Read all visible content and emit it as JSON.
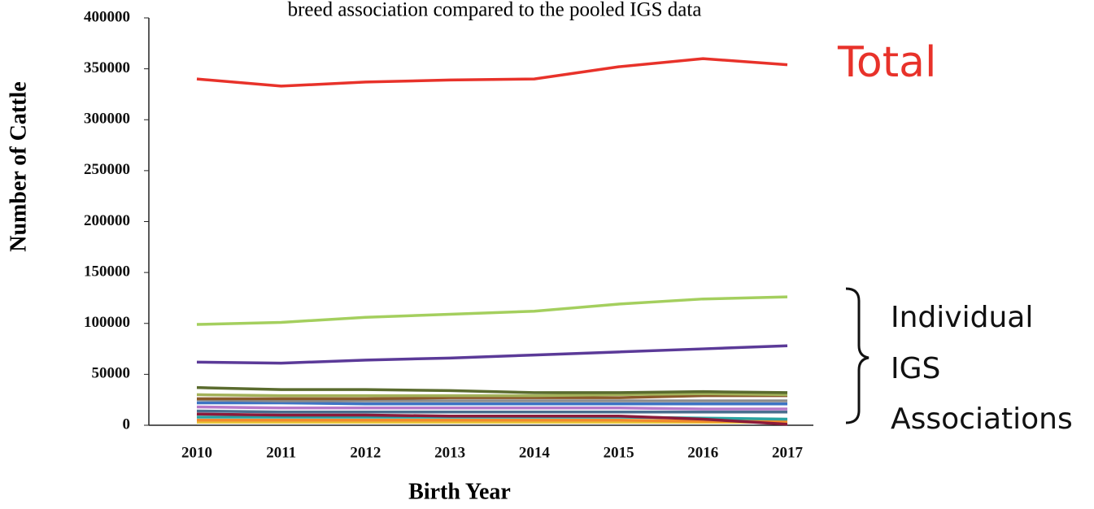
{
  "chart_data": {
    "type": "line",
    "title": "breed association compared to the pooled IGS data",
    "x_label": "Birth Year",
    "y_label": "Number of Cattle",
    "annotations": [
      "Total",
      "Individual",
      "IGS",
      "Associations"
    ],
    "categories": [
      "2010",
      "2011",
      "2012",
      "2013",
      "2014",
      "2015",
      "2016",
      "2017"
    ],
    "ylim": [
      0,
      400000
    ],
    "yticks": [
      0,
      50000,
      100000,
      150000,
      200000,
      250000,
      300000,
      350000,
      400000
    ],
    "grid": false,
    "series": [
      {
        "color": "#e8322a",
        "values": [
          340000,
          333000,
          337000,
          339000,
          340000,
          352000,
          360000,
          354000
        ]
      },
      {
        "color": "#a4cf5e",
        "values": [
          99000,
          101000,
          106000,
          109000,
          112000,
          119000,
          124000,
          126000
        ]
      },
      {
        "color": "#5b3a98",
        "values": [
          62000,
          61000,
          64000,
          66000,
          69000,
          72000,
          75000,
          78000
        ]
      },
      {
        "color": "#5a6b2e",
        "values": [
          37000,
          35000,
          35000,
          34000,
          32000,
          32000,
          33000,
          32000
        ]
      },
      {
        "color": "#a3b25a",
        "values": [
          30000,
          29000,
          29000,
          29000,
          29000,
          30000,
          31000,
          30000
        ]
      },
      {
        "color": "#8a5a2b",
        "values": [
          26000,
          26000,
          26000,
          27000,
          27000,
          27000,
          29000,
          29000
        ]
      },
      {
        "color": "#8c8c8c",
        "values": [
          25000,
          24000,
          24000,
          24000,
          24000,
          24000,
          24000,
          24000
        ]
      },
      {
        "color": "#3d74c4",
        "values": [
          22000,
          22000,
          21000,
          21000,
          21000,
          21000,
          21000,
          21000
        ]
      },
      {
        "color": "#b678c8",
        "values": [
          18000,
          17000,
          17000,
          17000,
          17000,
          17000,
          16000,
          16000
        ]
      },
      {
        "color": "#4a6f8f",
        "values": [
          14000,
          13000,
          13000,
          13000,
          13000,
          13000,
          13000,
          13000
        ]
      },
      {
        "color": "#8b1a3a",
        "values": [
          11000,
          10000,
          10000,
          9000,
          9000,
          9000,
          6000,
          1000
        ]
      },
      {
        "color": "#2aa3a0",
        "values": [
          8000,
          8000,
          8000,
          8000,
          8000,
          8000,
          7000,
          6000
        ]
      },
      {
        "color": "#f08a2c",
        "values": [
          5000,
          5000,
          5000,
          5000,
          5000,
          5000,
          4000,
          4000
        ]
      },
      {
        "color": "#e8c43a",
        "values": [
          3000,
          3000,
          3000,
          3000,
          3000,
          3000,
          3000,
          3000
        ]
      }
    ]
  }
}
